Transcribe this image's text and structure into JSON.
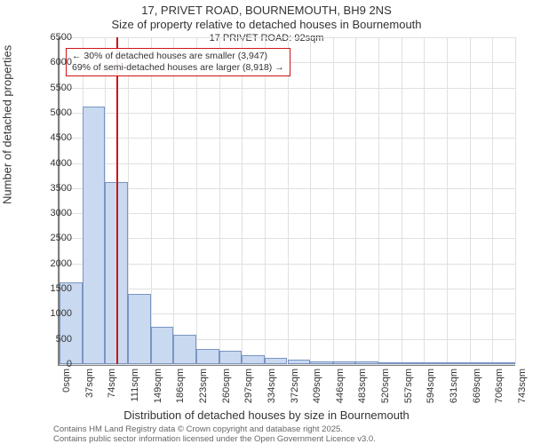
{
  "title_main": "17, PRIVET ROAD, BOURNEMOUTH, BH9 2NS",
  "title_sub": "Size of property relative to detached houses in Bournemouth",
  "caption_main": "17 PRIVET ROAD: 92sqm",
  "annotation_l1": "← 30% of detached houses are smaller (3,947)",
  "annotation_l2": "69% of semi-detached houses are larger (8,918) →",
  "ylabel": "Number of detached properties",
  "xlabel": "Distribution of detached houses by size in Bournemouth",
  "footnote1": "Contains HM Land Registry data © Crown copyright and database right 2025.",
  "footnote2": "Contains public sector information licensed under the Open Government Licence v3.0.",
  "chart": {
    "type": "histogram",
    "ylim": [
      0,
      6500
    ],
    "ytick_step": 500,
    "xticks": [
      0,
      37,
      74,
      111,
      149,
      186,
      223,
      260,
      297,
      334,
      372,
      409,
      446,
      483,
      520,
      557,
      594,
      631,
      669,
      706,
      743
    ],
    "xtick_suffix": "sqm",
    "bar_values": [
      1630,
      5120,
      3620,
      1400,
      750,
      580,
      300,
      260,
      180,
      120,
      90,
      60,
      50,
      45,
      40,
      30,
      25,
      20,
      15,
      10
    ],
    "bar_fill": "#c9d9f0",
    "bar_stroke": "#7a95c2",
    "grid_color": "#e0e0e0",
    "axis_color": "#808080",
    "marker_value": 92,
    "marker_color": "#d01414",
    "background": "#ffffff",
    "title_fontsize": 13,
    "label_fontsize": 13,
    "tick_fontsize": 11,
    "annotation_fontsize": 10.5
  }
}
